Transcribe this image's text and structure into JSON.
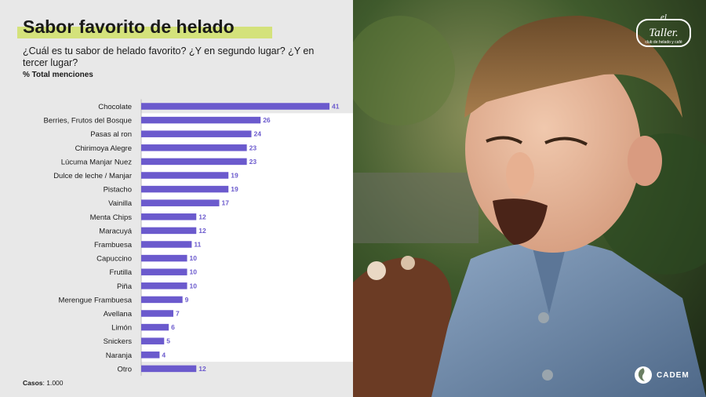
{
  "header": {
    "title": "Sabor favorito de helado",
    "question": "¿Cuál es tu sabor de helado favorito? ¿Y en segundo lugar? ¿Y en tercer lugar?",
    "metric": "% Total menciones"
  },
  "footer": {
    "cases_label": "Casos",
    "cases_value": ": 1.000"
  },
  "logos": {
    "taller_name": "el Taller",
    "taller_tagline": "club de helado y café",
    "cadem": "CADEM"
  },
  "colors": {
    "bar": "#6b5acd",
    "value_label": "#6b5acd",
    "title_highlight": "#d4e27b",
    "panel_bg": "#e8e8e8"
  },
  "chart_data": {
    "type": "bar",
    "orientation": "horizontal",
    "categories": [
      "Chocolate",
      "Berries, Frutos del Bosque",
      "Pasas al ron",
      "Chirimoya Alegre",
      "Lúcuma Manjar Nuez",
      "Dulce de leche / Manjar",
      "Pistacho",
      "Vainilla",
      "Menta Chips",
      "Maracuyá",
      "Frambuesa",
      "Capuccino",
      "Frutilla",
      "Piña",
      "Merengue Frambuesa",
      "Avellana",
      "Limón",
      "Snickers",
      "Naranja",
      "Otro"
    ],
    "values": [
      41,
      26,
      24,
      23,
      23,
      19,
      19,
      17,
      12,
      12,
      11,
      10,
      10,
      10,
      9,
      7,
      6,
      5,
      4,
      12
    ],
    "title": "Sabor favorito de helado",
    "xlabel": "",
    "ylabel": "",
    "xlim": [
      0,
      41
    ],
    "grid": false,
    "legend": "none"
  }
}
